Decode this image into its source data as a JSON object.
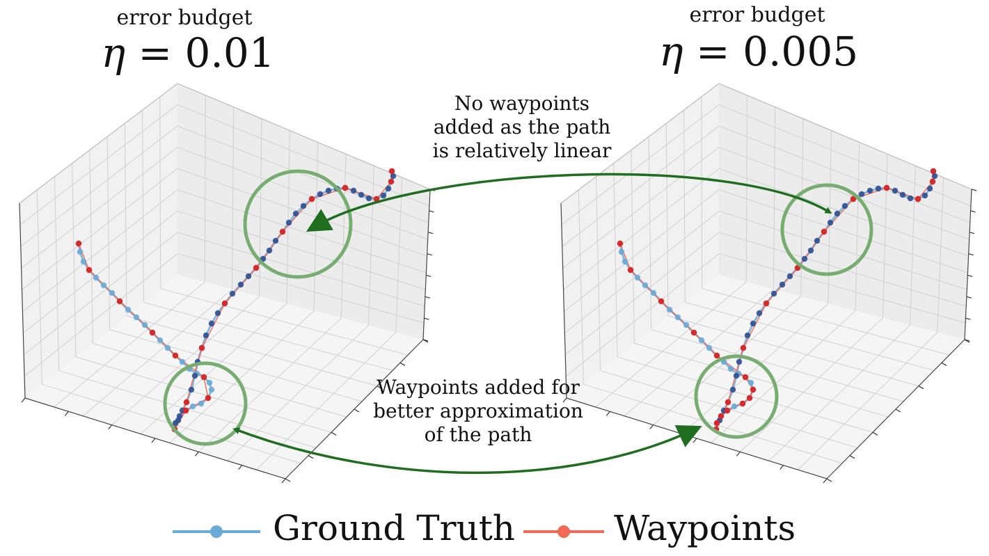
{
  "panels": [
    {
      "budget_label": "error budget",
      "eta_symbol": "η",
      "eta_value": "= 0.01"
    },
    {
      "budget_label": "error budget",
      "eta_symbol": "η",
      "eta_value": "= 0.005"
    }
  ],
  "annotations": {
    "linear": [
      "No waypoints",
      "added as the path",
      "is relatively linear"
    ],
    "added": [
      "Waypoints added for",
      "better approximation",
      "of the path"
    ]
  },
  "legend": {
    "ground_truth": "Ground Truth",
    "waypoints": "Waypoints"
  },
  "colors": {
    "ground_truth": "#6aaad8",
    "ground_truth_dark": "#2c4f94",
    "waypoints": "#f06a55",
    "waypoint_dot": "#d92a2a",
    "highlight_circle": "#78ad72",
    "arrow": "#1f6e1f",
    "pane": "#f1f1f1",
    "grid": "#d0d0d0"
  },
  "chart_data": [
    {
      "type": "scatter",
      "projection": "3d",
      "grid": true,
      "tick_labels": false,
      "eta": 0.01,
      "series": [
        {
          "name": "Ground Truth"
        },
        {
          "name": "Waypoints"
        }
      ]
    },
    {
      "type": "scatter",
      "projection": "3d",
      "grid": true,
      "tick_labels": false,
      "eta": 0.005,
      "series": [
        {
          "name": "Ground Truth"
        },
        {
          "name": "Waypoints"
        }
      ]
    }
  ]
}
